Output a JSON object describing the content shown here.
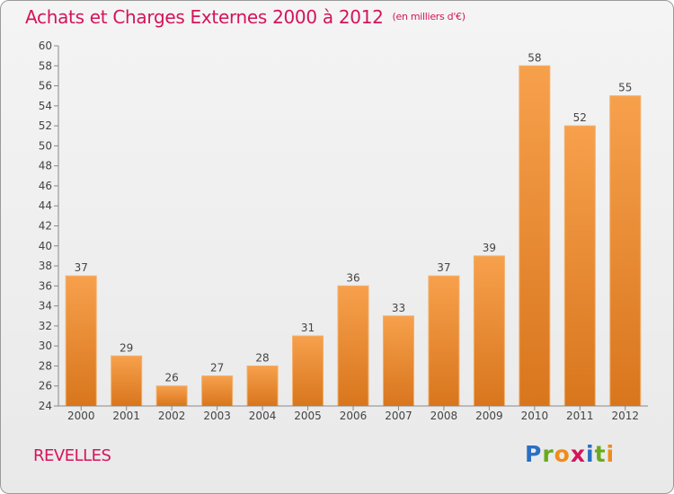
{
  "title": "Achats et Charges Externes 2000 à 2012",
  "unit": "(en milliers d'€)",
  "place": "REVELLES",
  "logo": {
    "letters": [
      "P",
      "r",
      "o",
      "x",
      "i",
      "t",
      "i"
    ],
    "colors": [
      "#2a6fc4",
      "#6aaa1e",
      "#f08c1a",
      "#d4145a",
      "#2a6fc4",
      "#6aaa1e",
      "#f08c1a"
    ]
  },
  "colors": {
    "bar_light": "#f7a04c",
    "bar_dark": "#d8761d",
    "title": "#d4145a"
  },
  "chart_data": {
    "type": "bar",
    "categories": [
      "2000",
      "2001",
      "2002",
      "2003",
      "2004",
      "2005",
      "2006",
      "2007",
      "2008",
      "2009",
      "2010",
      "2011",
      "2012"
    ],
    "values": [
      37,
      29,
      26,
      27,
      28,
      31,
      36,
      33,
      37,
      39,
      58,
      52,
      55
    ],
    "ylim": [
      24,
      60
    ],
    "yticks": [
      24,
      26,
      28,
      30,
      32,
      34,
      36,
      38,
      40,
      42,
      44,
      46,
      48,
      50,
      52,
      54,
      56,
      58,
      60
    ],
    "grid": false
  }
}
